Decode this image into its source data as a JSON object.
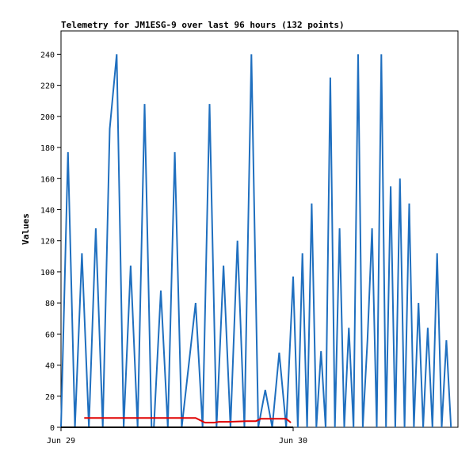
{
  "chart_data": {
    "type": "line",
    "title": "Telemetry for JM1ESG-9 over last 96 hours (132 points)",
    "ylabel": "Values",
    "ylim": [
      0,
      255
    ],
    "yticks": [
      0,
      20,
      40,
      60,
      80,
      100,
      120,
      140,
      160,
      180,
      200,
      220,
      240
    ],
    "xticks": [
      "Jun 29",
      "Jun 30"
    ],
    "grid": false,
    "series": [
      {
        "color": "#1f6fbf",
        "values": [
          0,
          177,
          0,
          112,
          0,
          128,
          0,
          192,
          240,
          0,
          104,
          0,
          208,
          0,
          0,
          88,
          0,
          177,
          0,
          40,
          80,
          0,
          208,
          0,
          104,
          0,
          120,
          0,
          240,
          0,
          24,
          0,
          48,
          0,
          97,
          0,
          112,
          0,
          144,
          0,
          49,
          0,
          225,
          0,
          128,
          0,
          64,
          0,
          240,
          0,
          56,
          128,
          0,
          240,
          0,
          155,
          0,
          160,
          0,
          144,
          0,
          80,
          0,
          64,
          0,
          112,
          0,
          56,
          0
        ],
        "x": [
          0.0,
          0.03,
          0.06,
          0.09,
          0.12,
          0.15,
          0.18,
          0.21,
          0.24,
          0.27,
          0.3,
          0.33,
          0.36,
          0.39,
          0.4,
          0.43,
          0.46,
          0.49,
          0.52,
          0.55,
          0.58,
          0.61,
          0.64,
          0.67,
          0.7,
          0.73,
          0.76,
          0.79,
          0.82,
          0.85,
          0.88,
          0.91,
          0.94,
          0.97,
          1.0,
          1.02,
          1.04,
          1.06,
          1.08,
          1.1,
          1.12,
          1.14,
          1.16,
          1.18,
          1.2,
          1.22,
          1.24,
          1.26,
          1.28,
          1.3,
          1.32,
          1.34,
          1.36,
          1.38,
          1.4,
          1.42,
          1.44,
          1.46,
          1.48,
          1.5,
          1.52,
          1.54,
          1.56,
          1.58,
          1.6,
          1.62,
          1.64,
          1.66,
          1.68
        ]
      },
      {
        "color": "#e00000",
        "points": [
          [
            0.1,
            6
          ],
          [
            0.2,
            6
          ],
          [
            0.5,
            6
          ],
          [
            0.58,
            6
          ],
          [
            0.62,
            3
          ],
          [
            0.66,
            3
          ],
          [
            0.68,
            3.5
          ],
          [
            0.72,
            3.5
          ],
          [
            0.8,
            4
          ],
          [
            0.84,
            4
          ],
          [
            0.86,
            5.5
          ],
          [
            0.92,
            5.5
          ],
          [
            0.97,
            5.5
          ],
          [
            0.99,
            3
          ]
        ]
      },
      {
        "color": "#000000",
        "points": [
          [
            0.0,
            0
          ],
          [
            1.0,
            0
          ]
        ]
      }
    ]
  }
}
